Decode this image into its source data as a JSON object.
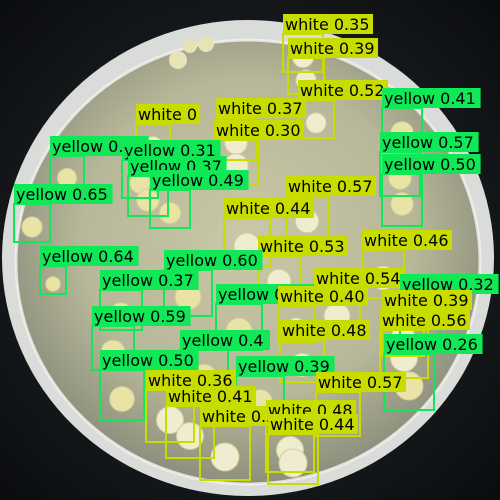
{
  "scene": "petri dish with bacterial colonies and object-detection overlay",
  "colors": {
    "white_class": "#c8dc00",
    "yellow_class": "#10e858",
    "text": "#000000"
  },
  "detections": [
    {
      "cls": "white",
      "score": "0.35"
    },
    {
      "cls": "white",
      "score": "0.39"
    },
    {
      "cls": "white",
      "score": "0.52"
    },
    {
      "cls": "white",
      "score": "0.37"
    },
    {
      "cls": "white",
      "score": "0.30"
    },
    {
      "cls": "white",
      "score": "0"
    },
    {
      "cls": "yellow",
      "score": "0.41"
    },
    {
      "cls": "yellow",
      "score": "0.57"
    },
    {
      "cls": "yellow",
      "score": "0.50"
    },
    {
      "cls": "yellow",
      "score": "0.40"
    },
    {
      "cls": "yellow",
      "score": "0.31"
    },
    {
      "cls": "yellow",
      "score": "0.37"
    },
    {
      "cls": "yellow",
      "score": "0.49"
    },
    {
      "cls": "yellow",
      "score": "0.65"
    },
    {
      "cls": "white",
      "score": "0.57"
    },
    {
      "cls": "white",
      "score": "0.44"
    },
    {
      "cls": "white",
      "score": "0.53"
    },
    {
      "cls": "white",
      "score": "0.46"
    },
    {
      "cls": "yellow",
      "score": "0.64"
    },
    {
      "cls": "yellow",
      "score": "0.60"
    },
    {
      "cls": "yellow",
      "score": "0.37"
    },
    {
      "cls": "yellow",
      "score": "0.42"
    },
    {
      "cls": "white",
      "score": "0.40"
    },
    {
      "cls": "white",
      "score": "0.54"
    },
    {
      "cls": "yellow",
      "score": "0.32"
    },
    {
      "cls": "white",
      "score": "0.39"
    },
    {
      "cls": "yellow",
      "score": "0.59"
    },
    {
      "cls": "white",
      "score": "0.56"
    },
    {
      "cls": "white",
      "score": "0.48"
    },
    {
      "cls": "yellow",
      "score": "0.26"
    },
    {
      "cls": "yellow",
      "score": "0.4"
    },
    {
      "cls": "yellow",
      "score": "0.50"
    },
    {
      "cls": "yellow",
      "score": "0.39"
    },
    {
      "cls": "white",
      "score": "0.57"
    },
    {
      "cls": "white",
      "score": "0.36"
    },
    {
      "cls": "white",
      "score": "0.41"
    },
    {
      "cls": "white",
      "score": "0.37"
    },
    {
      "cls": "white",
      "score": "0.48"
    },
    {
      "cls": "white",
      "score": "0.44"
    }
  ]
}
